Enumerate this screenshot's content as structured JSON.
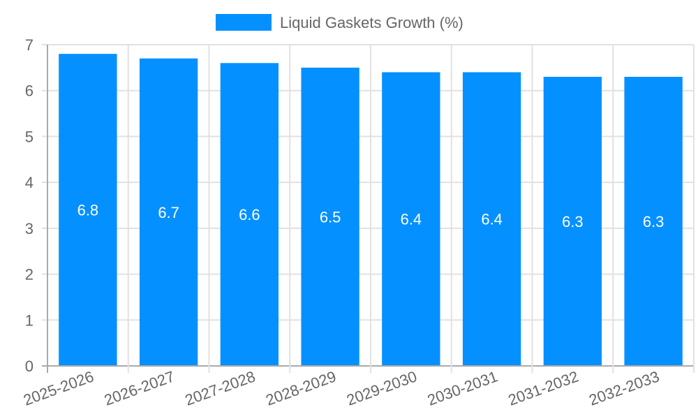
{
  "chart_data": {
    "type": "bar",
    "title": "",
    "legend": [
      {
        "label": "Liquid Gaskets Growth (%)",
        "color": "#0590FF"
      }
    ],
    "legend_position": "top",
    "categories": [
      "2025-2026",
      "2026-2027",
      "2027-2028",
      "2028-2029",
      "2029-2030",
      "2030-2031",
      "2031-2032",
      "2032-2033"
    ],
    "series": [
      {
        "name": "Liquid Gaskets Growth (%)",
        "values": [
          6.8,
          6.7,
          6.6,
          6.5,
          6.4,
          6.4,
          6.3,
          6.3
        ],
        "color": "#0590FF"
      }
    ],
    "data_labels": [
      "6.8",
      "6.7",
      "6.6",
      "6.5",
      "6.4",
      "6.4",
      "6.3",
      "6.3"
    ],
    "xlabel": "",
    "ylabel": "",
    "ylim": [
      0,
      7
    ],
    "yticks": [
      "0",
      "1",
      "2",
      "3",
      "4",
      "5",
      "6",
      "7"
    ],
    "grid": true
  }
}
